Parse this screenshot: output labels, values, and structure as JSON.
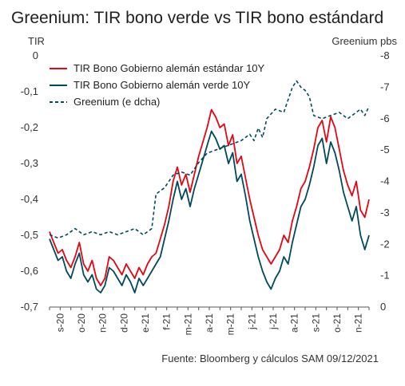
{
  "chart_data": {
    "type": "line",
    "title": "Greenium: TIR bono verde vs TIR bono estándard",
    "ylabel_left": "TIR",
    "ylabel_right": "Greenium pbs",
    "ylim_left": [
      -0.7,
      0
    ],
    "yticks_left": [
      "0",
      "-0,1",
      "-0,2",
      "-0,3",
      "-0,4",
      "-0,5",
      "-0,6",
      "-0,7"
    ],
    "ylim_right": [
      0,
      -8
    ],
    "yticks_right": [
      "-8",
      "-7",
      "-6",
      "-5",
      "-4",
      "-3",
      "-2",
      "-1",
      "0"
    ],
    "xtick_labels": [
      "s-20",
      "o-20",
      "n-20",
      "d-20",
      "e-21",
      "f-21",
      "m-21",
      "a-21",
      "m-21",
      "j-21",
      "j-21",
      "a-21",
      "s-21",
      "o-21",
      "n-21"
    ],
    "source": "Fuente: Bloomberg y cálculos SAM 09/12/2021",
    "colors": {
      "standard": "#e30613",
      "green": "#004a5c",
      "greenium": "#004a5c"
    },
    "series": [
      {
        "name": "TIR Bono Gobierno alemán estándar 10Y",
        "axis": "left",
        "points": [
          [
            0,
            -0.49
          ],
          [
            2,
            -0.52
          ],
          [
            4,
            -0.55
          ],
          [
            6,
            -0.54
          ],
          [
            8,
            -0.57
          ],
          [
            10,
            -0.59
          ],
          [
            12,
            -0.56
          ],
          [
            14,
            -0.52
          ],
          [
            16,
            -0.58
          ],
          [
            18,
            -0.6
          ],
          [
            20,
            -0.57
          ],
          [
            22,
            -0.62
          ],
          [
            24,
            -0.64
          ],
          [
            26,
            -0.62
          ],
          [
            28,
            -0.56
          ],
          [
            30,
            -0.57
          ],
          [
            32,
            -0.59
          ],
          [
            34,
            -0.61
          ],
          [
            36,
            -0.58
          ],
          [
            38,
            -0.6
          ],
          [
            40,
            -0.62
          ],
          [
            42,
            -0.59
          ],
          [
            44,
            -0.61
          ],
          [
            46,
            -0.58
          ],
          [
            48,
            -0.56
          ],
          [
            50,
            -0.55
          ],
          [
            52,
            -0.51
          ],
          [
            54,
            -0.47
          ],
          [
            56,
            -0.42
          ],
          [
            58,
            -0.35
          ],
          [
            60,
            -0.31
          ],
          [
            62,
            -0.36
          ],
          [
            64,
            -0.33
          ],
          [
            66,
            -0.38
          ],
          [
            68,
            -0.33
          ],
          [
            70,
            -0.28
          ],
          [
            72,
            -0.24
          ],
          [
            74,
            -0.2
          ],
          [
            76,
            -0.15
          ],
          [
            78,
            -0.17
          ],
          [
            80,
            -0.2
          ],
          [
            82,
            -0.19
          ],
          [
            84,
            -0.25
          ],
          [
            86,
            -0.22
          ],
          [
            88,
            -0.3
          ],
          [
            90,
            -0.28
          ],
          [
            92,
            -0.34
          ],
          [
            94,
            -0.4
          ],
          [
            96,
            -0.45
          ],
          [
            98,
            -0.5
          ],
          [
            100,
            -0.54
          ],
          [
            102,
            -0.56
          ],
          [
            104,
            -0.58
          ],
          [
            106,
            -0.56
          ],
          [
            108,
            -0.54
          ],
          [
            110,
            -0.5
          ],
          [
            112,
            -0.52
          ],
          [
            114,
            -0.46
          ],
          [
            116,
            -0.42
          ],
          [
            118,
            -0.37
          ],
          [
            120,
            -0.35
          ],
          [
            122,
            -0.31
          ],
          [
            124,
            -0.26
          ],
          [
            126,
            -0.2
          ],
          [
            128,
            -0.18
          ],
          [
            130,
            -0.24
          ],
          [
            132,
            -0.17
          ],
          [
            134,
            -0.2
          ],
          [
            136,
            -0.26
          ],
          [
            138,
            -0.32
          ],
          [
            140,
            -0.36
          ],
          [
            142,
            -0.39
          ],
          [
            144,
            -0.35
          ],
          [
            146,
            -0.43
          ],
          [
            148,
            -0.45
          ],
          [
            150,
            -0.4
          ]
        ]
      },
      {
        "name": "TIR Bono Gobierno alemán verde 10Y",
        "axis": "left",
        "points": [
          [
            0,
            -0.51
          ],
          [
            2,
            -0.54
          ],
          [
            4,
            -0.57
          ],
          [
            6,
            -0.56
          ],
          [
            8,
            -0.6
          ],
          [
            10,
            -0.62
          ],
          [
            12,
            -0.58
          ],
          [
            14,
            -0.55
          ],
          [
            16,
            -0.61
          ],
          [
            18,
            -0.63
          ],
          [
            20,
            -0.61
          ],
          [
            22,
            -0.65
          ],
          [
            24,
            -0.66
          ],
          [
            26,
            -0.64
          ],
          [
            28,
            -0.59
          ],
          [
            30,
            -0.6
          ],
          [
            32,
            -0.62
          ],
          [
            34,
            -0.64
          ],
          [
            36,
            -0.61
          ],
          [
            38,
            -0.63
          ],
          [
            40,
            -0.66
          ],
          [
            42,
            -0.62
          ],
          [
            44,
            -0.64
          ],
          [
            46,
            -0.62
          ],
          [
            48,
            -0.6
          ],
          [
            50,
            -0.58
          ],
          [
            52,
            -0.56
          ],
          [
            54,
            -0.51
          ],
          [
            56,
            -0.46
          ],
          [
            58,
            -0.4
          ],
          [
            60,
            -0.35
          ],
          [
            62,
            -0.4
          ],
          [
            64,
            -0.37
          ],
          [
            66,
            -0.42
          ],
          [
            68,
            -0.37
          ],
          [
            70,
            -0.33
          ],
          [
            72,
            -0.29
          ],
          [
            74,
            -0.25
          ],
          [
            76,
            -0.21
          ],
          [
            78,
            -0.23
          ],
          [
            80,
            -0.26
          ],
          [
            82,
            -0.25
          ],
          [
            84,
            -0.3
          ],
          [
            86,
            -0.27
          ],
          [
            88,
            -0.35
          ],
          [
            90,
            -0.33
          ],
          [
            92,
            -0.39
          ],
          [
            94,
            -0.46
          ],
          [
            96,
            -0.51
          ],
          [
            98,
            -0.56
          ],
          [
            100,
            -0.6
          ],
          [
            102,
            -0.63
          ],
          [
            104,
            -0.65
          ],
          [
            106,
            -0.62
          ],
          [
            108,
            -0.6
          ],
          [
            110,
            -0.56
          ],
          [
            112,
            -0.58
          ],
          [
            114,
            -0.52
          ],
          [
            116,
            -0.47
          ],
          [
            118,
            -0.42
          ],
          [
            120,
            -0.4
          ],
          [
            122,
            -0.36
          ],
          [
            124,
            -0.31
          ],
          [
            126,
            -0.25
          ],
          [
            128,
            -0.23
          ],
          [
            130,
            -0.3
          ],
          [
            132,
            -0.24
          ],
          [
            134,
            -0.27
          ],
          [
            136,
            -0.32
          ],
          [
            138,
            -0.38
          ],
          [
            140,
            -0.42
          ],
          [
            142,
            -0.46
          ],
          [
            144,
            -0.42
          ],
          [
            146,
            -0.5
          ],
          [
            148,
            -0.54
          ],
          [
            150,
            -0.5
          ]
        ]
      },
      {
        "name": "Greenium (e dcha)",
        "axis": "right",
        "dashed": true,
        "points": [
          [
            0,
            -2.3
          ],
          [
            4,
            -2.2
          ],
          [
            8,
            -2.3
          ],
          [
            12,
            -2.5
          ],
          [
            16,
            -2.3
          ],
          [
            20,
            -2.4
          ],
          [
            24,
            -2.3
          ],
          [
            28,
            -2.4
          ],
          [
            32,
            -2.3
          ],
          [
            36,
            -2.4
          ],
          [
            40,
            -2.5
          ],
          [
            44,
            -2.3
          ],
          [
            48,
            -2.5
          ],
          [
            50,
            -3.6
          ],
          [
            54,
            -3.8
          ],
          [
            58,
            -4.2
          ],
          [
            62,
            -4.3
          ],
          [
            66,
            -4.2
          ],
          [
            70,
            -4.6
          ],
          [
            74,
            -4.9
          ],
          [
            78,
            -5.0
          ],
          [
            82,
            -5.1
          ],
          [
            86,
            -5.2
          ],
          [
            90,
            -5.3
          ],
          [
            94,
            -5.5
          ],
          [
            96,
            -5.3
          ],
          [
            98,
            -5.7
          ],
          [
            100,
            -5.4
          ],
          [
            102,
            -6.0
          ],
          [
            106,
            -6.3
          ],
          [
            110,
            -6.2
          ],
          [
            114,
            -7.0
          ],
          [
            116,
            -7.2
          ],
          [
            118,
            -7.0
          ],
          [
            120,
            -6.9
          ],
          [
            122,
            -6.7
          ],
          [
            124,
            -6.1
          ],
          [
            128,
            -6.0
          ],
          [
            132,
            -6.1
          ],
          [
            136,
            -6.2
          ],
          [
            140,
            -6.0
          ],
          [
            142,
            -6.1
          ],
          [
            144,
            -6.2
          ],
          [
            146,
            -6.3
          ],
          [
            148,
            -6.1
          ],
          [
            150,
            -6.4
          ]
        ]
      }
    ]
  }
}
